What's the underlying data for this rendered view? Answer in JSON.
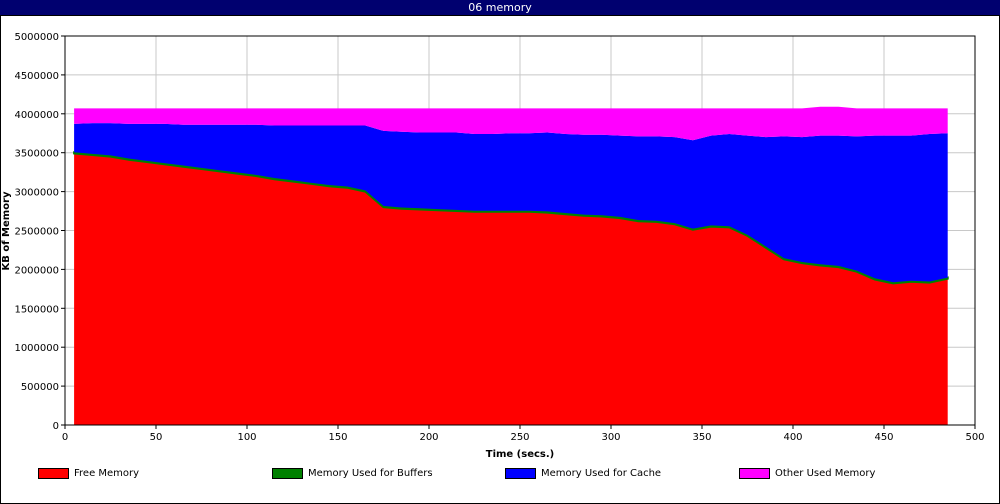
{
  "window": {
    "title": "06 memory"
  },
  "chart_data": {
    "type": "area",
    "stacked": true,
    "xlabel": "Time (secs.)",
    "ylabel": "KB of Memory",
    "xlim": [
      0,
      500
    ],
    "ylim": [
      0,
      5000000
    ],
    "x_ticks": [
      "0",
      "50",
      "100",
      "150",
      "200",
      "250",
      "300",
      "350",
      "400",
      "450",
      "500"
    ],
    "y_ticks": [
      "0",
      "500000",
      "1000000",
      "1500000",
      "2000000",
      "2500000",
      "3000000",
      "3500000",
      "4000000",
      "4500000",
      "5000000"
    ],
    "grid": true,
    "legend_position": "bottom",
    "x": [
      5,
      15,
      25,
      35,
      45,
      55,
      65,
      75,
      85,
      95,
      105,
      115,
      125,
      135,
      145,
      155,
      165,
      175,
      185,
      195,
      205,
      215,
      225,
      235,
      245,
      255,
      265,
      275,
      285,
      295,
      305,
      315,
      325,
      335,
      345,
      355,
      365,
      375,
      385,
      395,
      405,
      415,
      425,
      435,
      445,
      455,
      465,
      475,
      485
    ],
    "series": [
      {
        "name": "Free Memory",
        "color": "#ff0000",
        "values": [
          3490000,
          3470000,
          3450000,
          3410000,
          3380000,
          3350000,
          3320000,
          3290000,
          3260000,
          3230000,
          3200000,
          3160000,
          3130000,
          3100000,
          3070000,
          3050000,
          3000000,
          2800000,
          2780000,
          2770000,
          2760000,
          2750000,
          2740000,
          2740000,
          2740000,
          2740000,
          2730000,
          2710000,
          2690000,
          2680000,
          2660000,
          2620000,
          2610000,
          2580000,
          2510000,
          2550000,
          2540000,
          2430000,
          2280000,
          2130000,
          2080000,
          2050000,
          2030000,
          1970000,
          1870000,
          1820000,
          1840000,
          1830000,
          1880000
        ]
      },
      {
        "name": "Memory Used for Buffers",
        "color": "#008000",
        "values": [
          15000,
          15000,
          15000,
          15000,
          15000,
          15000,
          15000,
          15000,
          15000,
          15000,
          15000,
          15000,
          15000,
          15000,
          15000,
          15000,
          15000,
          15000,
          15000,
          15000,
          15000,
          15000,
          15000,
          15000,
          15000,
          15000,
          15000,
          15000,
          15000,
          15000,
          15000,
          15000,
          15000,
          15000,
          15000,
          15000,
          15000,
          15000,
          15000,
          15000,
          15000,
          15000,
          15000,
          15000,
          15000,
          15000,
          15000,
          15000,
          15000
        ]
      },
      {
        "name": "Memory Used for Cache",
        "color": "#0000ff",
        "values": [
          365000,
          395000,
          415000,
          445000,
          475000,
          505000,
          525000,
          555000,
          585000,
          615000,
          645000,
          675000,
          705000,
          735000,
          765000,
          785000,
          835000,
          965000,
          975000,
          975000,
          985000,
          995000,
          985000,
          985000,
          995000,
          995000,
          1015000,
          1015000,
          1025000,
          1035000,
          1045000,
          1075000,
          1085000,
          1105000,
          1135000,
          1155000,
          1185000,
          1275000,
          1405000,
          1565000,
          1605000,
          1655000,
          1675000,
          1725000,
          1835000,
          1885000,
          1865000,
          1895000,
          1855000
        ]
      },
      {
        "name": "Other Used Memory",
        "color": "#ff00ff",
        "values": [
          200000,
          190000,
          190000,
          200000,
          200000,
          200000,
          210000,
          210000,
          210000,
          210000,
          210000,
          220000,
          220000,
          220000,
          220000,
          220000,
          220000,
          290000,
          300000,
          310000,
          310000,
          310000,
          330000,
          330000,
          320000,
          320000,
          310000,
          330000,
          340000,
          340000,
          350000,
          360000,
          360000,
          370000,
          410000,
          350000,
          330000,
          350000,
          370000,
          360000,
          370000,
          370000,
          370000,
          360000,
          350000,
          350000,
          350000,
          330000,
          320000
        ]
      }
    ]
  }
}
